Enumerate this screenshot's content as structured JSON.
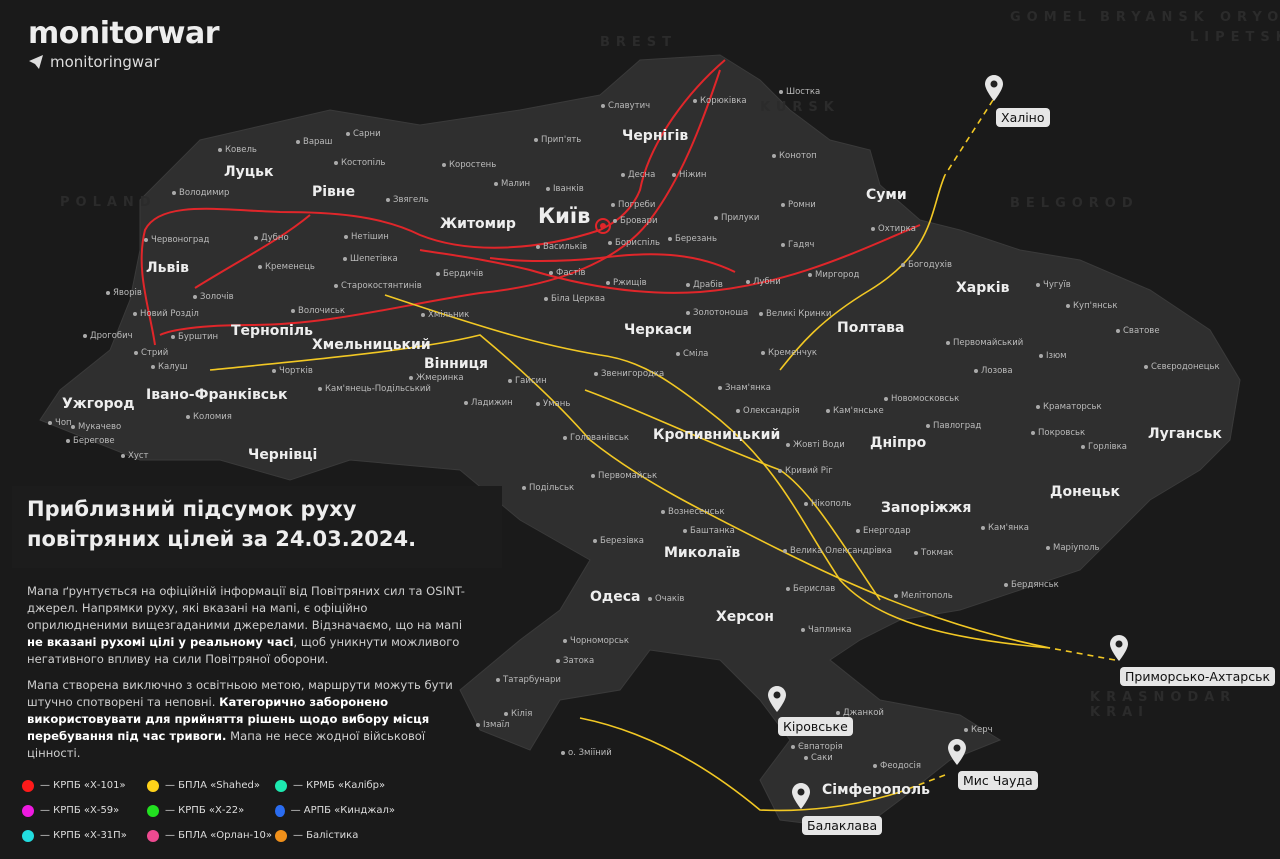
{
  "brand": {
    "name": "monitorwar",
    "telegram": "monitoringwar",
    "watermark": "monitorwar"
  },
  "title": "Приблизний підсумок руху повітряних цілей за 24.03.2024.",
  "description": {
    "p1_a": "Мапа ґрунтується на офіційній інформації від Повітряних сил та OSINT-джерел. Напрямки руху, які вказані на мапі, є офіційно оприлюдненими вищезгаданими джерелами. Відзначаємо, що на мапі ",
    "p1_bold": "не вказані рухомі цілі у реальному часі",
    "p1_b": ", щоб уникнути можливого негативного впливу на сили Повітряної оборони.",
    "p2_a": "Мапа створена виключно з освітньою метою, маршрути можуть бути штучно спотворені та неповні. ",
    "p2_bold": "Категорично заборонено використовувати для прийняття рішень щодо вибору місця перебування під час тривоги.",
    "p2_b": " Мапа не несе жодної військової цінності."
  },
  "legend": [
    {
      "label": "— КРПБ «Х-101»",
      "color": "#ff1a1a"
    },
    {
      "label": "— БПЛА «Shahed»",
      "color": "#ffd21a"
    },
    {
      "label": "— КРМБ «Калібр»",
      "color": "#1de9b0"
    },
    {
      "label": "— КРПБ «Х-59»",
      "color": "#ee1ae0"
    },
    {
      "label": "— КРПБ «Х-22»",
      "color": "#22e020"
    },
    {
      "label": "— АРПБ «Кинджал»",
      "color": "#2a6cf0"
    },
    {
      "label": "— КРПБ «Х-31П»",
      "color": "#22dde0"
    },
    {
      "label": "— БПЛА «Орлан-10»",
      "color": "#ee4a90"
    },
    {
      "label": "— Балістика",
      "color": "#f0901a"
    }
  ],
  "launch_sites": [
    "Халіно",
    "Приморсько-Ахтарськ",
    "Кіровське",
    "Мис Чауда",
    "Балаклава"
  ],
  "regions": [
    "BREST",
    "GOMEL",
    "BRYANSK",
    "ORYOL",
    "LIPETSK",
    "KURSK",
    "BELGOROD",
    "POLAND",
    "KRASNODAR KRAI"
  ],
  "major_cities": [
    "Київ",
    "Луцьк",
    "Рівне",
    "Житомир",
    "Чернігів",
    "Суми",
    "Харків",
    "Полтава",
    "Черкаси",
    "Хмельницький",
    "Тернопіль",
    "Львів",
    "Івано-Франківськ",
    "Ужгород",
    "Чернівці",
    "Вінниця",
    "Кропивницький",
    "Дніпро",
    "Запоріжжя",
    "Луганськ",
    "Донецьк",
    "Миколаїв",
    "Одеса",
    "Херсон",
    "Сімферополь"
  ],
  "cities": [
    "Ковель",
    "Сарни",
    "Вараш",
    "Костопіль",
    "Коростень",
    "Малин",
    "Іванків",
    "Прип'ять",
    "Славутич",
    "Корюківка",
    "Шостка",
    "Конотоп",
    "Ніжин",
    "Десна",
    "Погреби",
    "Бровари",
    "Бориспіль",
    "Березань",
    "Прилуки",
    "Ромни",
    "Охтирка",
    "Гадяч",
    "Богодухів",
    "Миргород",
    "Лубни",
    "Чугуїв",
    "Куп'янськ",
    "Сватове",
    "Первомайський",
    "Ізюм",
    "Сєвєродонецьк",
    "Лозова",
    "Новомосковськ",
    "Краматорськ",
    "Павлоград",
    "Покровськ",
    "Горлівка",
    "Кам'янське",
    "Олександрія",
    "Знам'янка",
    "Кременчук",
    "Великі Кринки",
    "Золотоноша",
    "Сміла",
    "Звенигородка",
    "Умань",
    "Гайсин",
    "Ладижин",
    "Жмеринка",
    "Хмільник",
    "Бердичів",
    "Старокостянтинів",
    "Волочиськ",
    "Шепетівка",
    "Нетішин",
    "Звягель",
    "Кременець",
    "Дубно",
    "Червоноград",
    "Володимир",
    "Яворів",
    "Золочів",
    "Новий Розділ",
    "Бурштин",
    "Дрогобич",
    "Стрий",
    "Калуш",
    "Чортків",
    "Кам'янець-Подільський",
    "Коломия",
    "Чоп",
    "Мукачево",
    "Берегове",
    "Хуст",
    "Васильків",
    "Фастів",
    "Біла Церква",
    "Ржищів",
    "Драбів",
    "Голованівськ",
    "Первомайськ",
    "Подільськ",
    "Вознесенськ",
    "Березівка",
    "Баштанка",
    "Очаків",
    "Чорноморськ",
    "Затока",
    "Ізмаїл",
    "Кілія",
    "Татарбунари",
    "о. Зміїний",
    "Берислав",
    "Велика Олександрівка",
    "Нікополь",
    "Енергодар",
    "Кривий Ріг",
    "Жовті Води",
    "Токмак",
    "Мелітополь",
    "Бердянськ",
    "Маріуполь",
    "Кам'янка",
    "Чаплинка",
    "Джанкой",
    "Євпаторія",
    "Саки",
    "Феодосія",
    "Керч"
  ]
}
